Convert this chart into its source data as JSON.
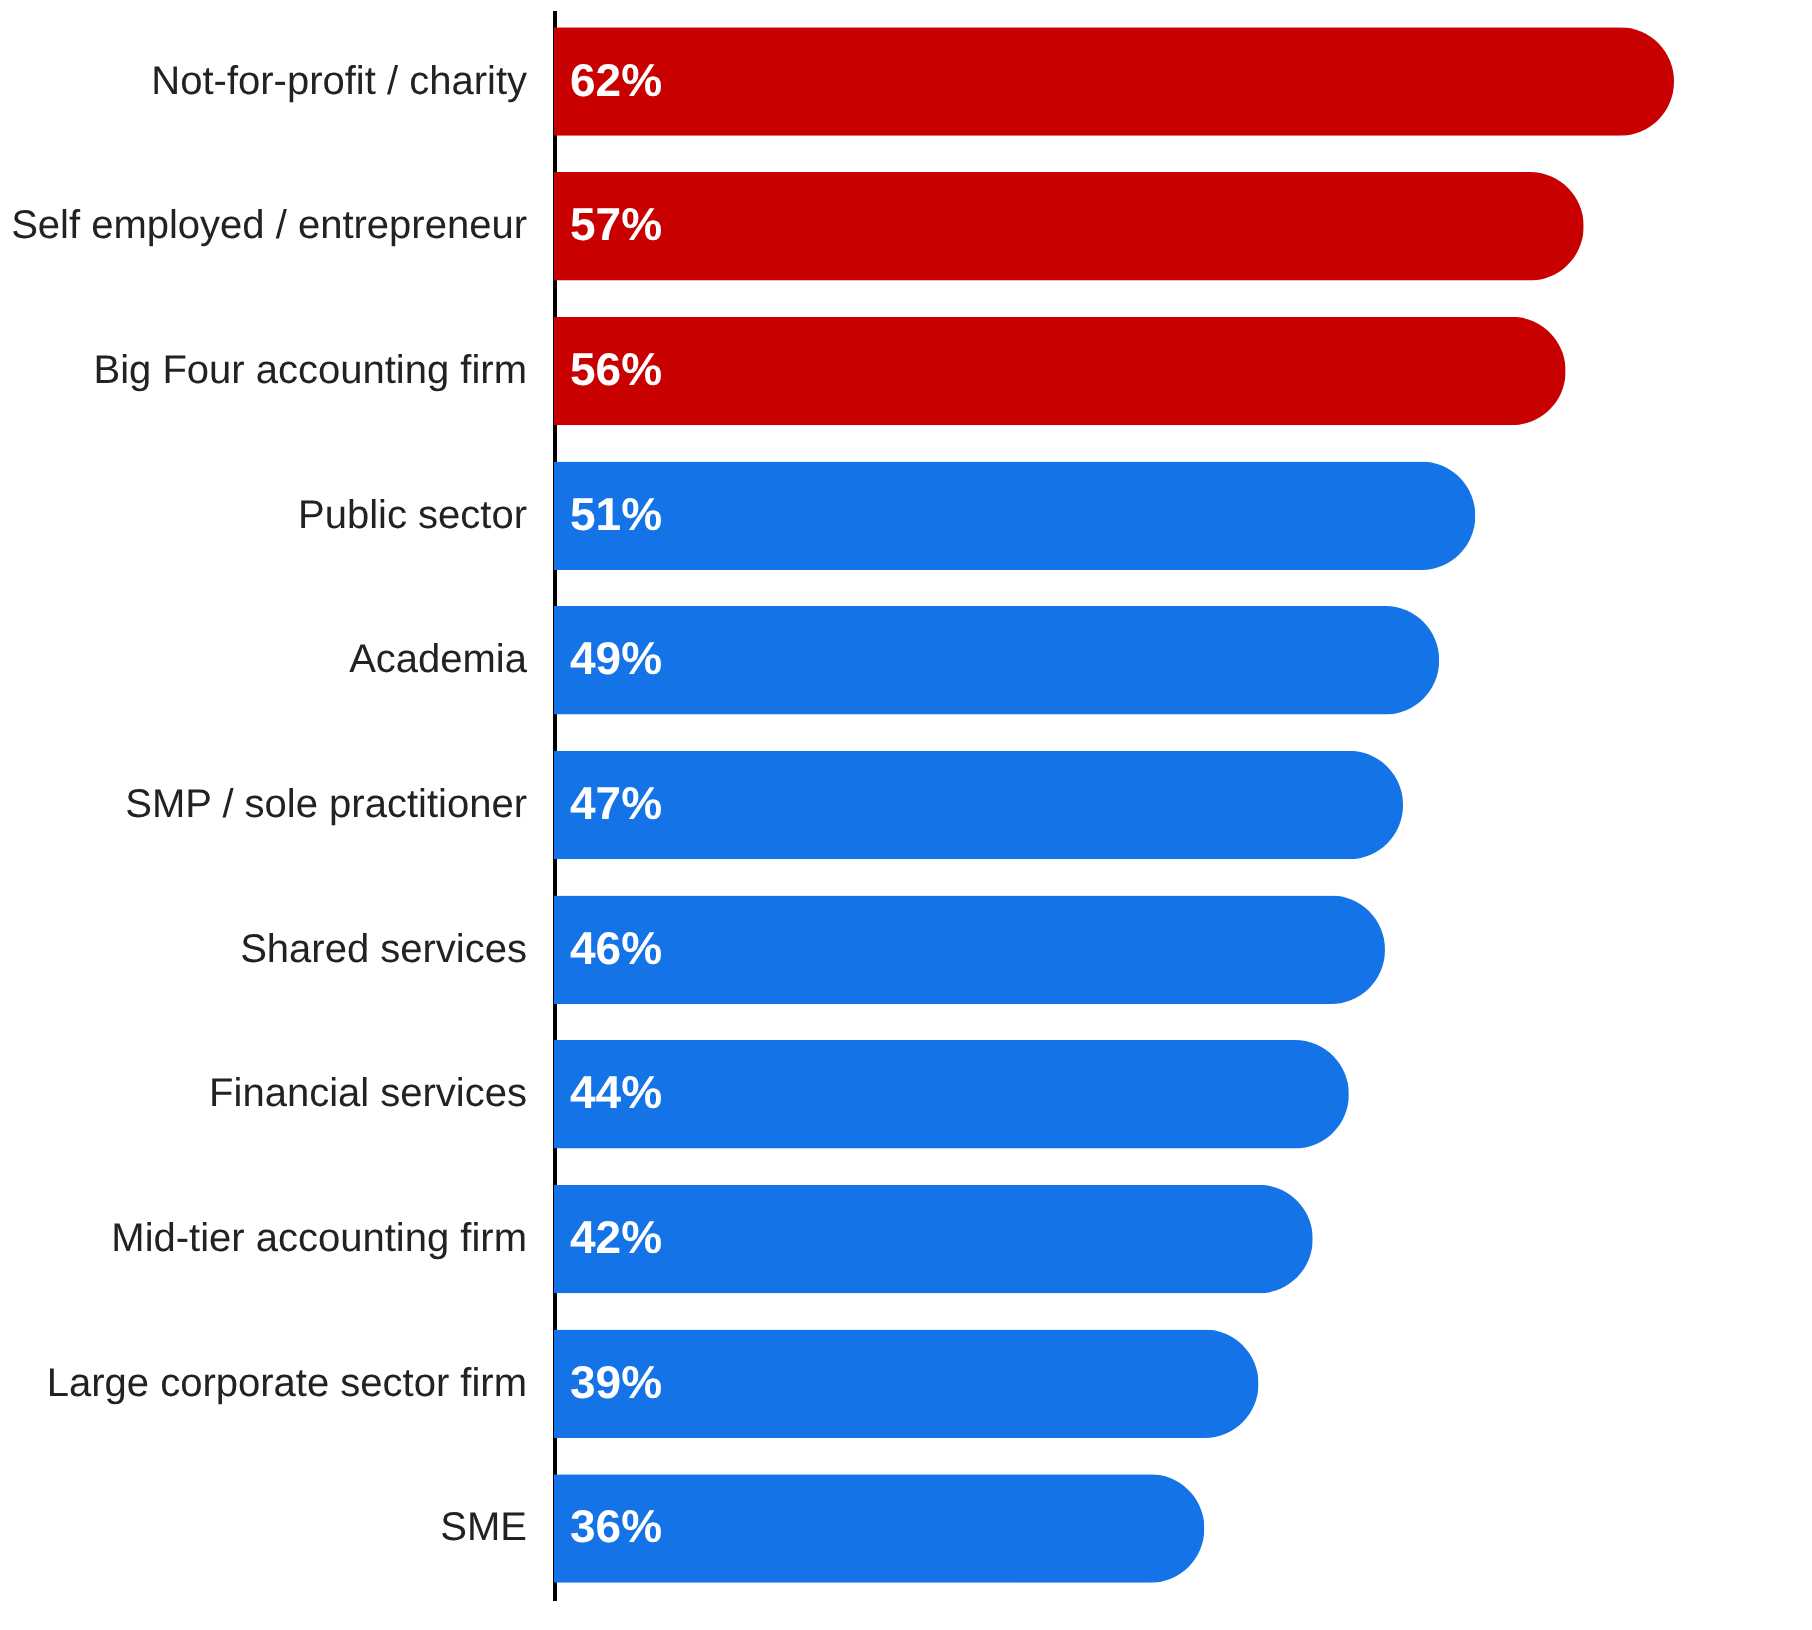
{
  "chart_data": {
    "type": "bar",
    "orientation": "horizontal",
    "categories": [
      "Not-for-profit / charity",
      "Self employed / entrepreneur",
      "Big Four accounting firm",
      "Public sector",
      "Academia",
      "SMP / sole practitioner",
      "Shared services",
      "Financial services",
      "Mid-tier accounting firm",
      "Large corporate sector firm",
      "SME"
    ],
    "values": [
      62,
      57,
      56,
      51,
      49,
      47,
      46,
      44,
      42,
      39,
      36
    ],
    "colors": [
      "#c80000",
      "#c80000",
      "#c80000",
      "#1473e6",
      "#1473e6",
      "#1473e6",
      "#1473e6",
      "#1473e6",
      "#1473e6",
      "#1473e6",
      "#1473e6"
    ],
    "value_labels": [
      "62%",
      "57%",
      "56%",
      "51%",
      "49%",
      "47%",
      "46%",
      "44%",
      "42%",
      "39%",
      "36%"
    ],
    "legend": false
  }
}
